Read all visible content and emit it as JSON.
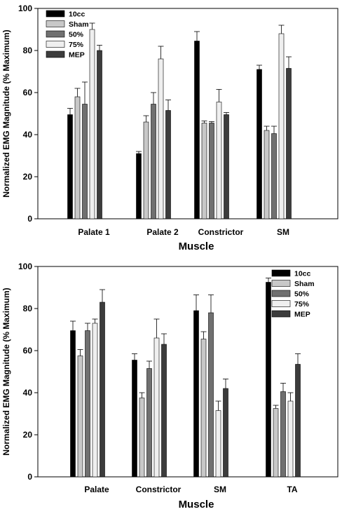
{
  "chart_data": [
    {
      "type": "bar",
      "ylabel": "Normalized EMG Magnitude (% Maximum)",
      "xlabel": "Muscle",
      "ylim": [
        0,
        100
      ],
      "yticks": [
        "0",
        "20",
        "40",
        "60",
        "80",
        "100"
      ],
      "categories": [
        "Palate 1",
        "Palate 2",
        "Constrictor",
        "SM"
      ],
      "legend_position": "top-left",
      "series": [
        {
          "name": "10cc",
          "color": "#000000",
          "values": [
            49.5,
            31,
            84.5,
            71
          ],
          "errors": [
            3,
            1,
            4.5,
            2
          ]
        },
        {
          "name": "Sham",
          "color": "#c8c8c8",
          "values": [
            58,
            46,
            45.5,
            42
          ],
          "errors": [
            4,
            3,
            1,
            2
          ]
        },
        {
          "name": "50%",
          "color": "#707070",
          "values": [
            54.5,
            54.5,
            45.5,
            40.5
          ],
          "errors": [
            10.5,
            5.5,
            0.7,
            3.5
          ]
        },
        {
          "name": "75%",
          "color": "#efefef",
          "values": [
            90,
            76,
            55.5,
            88
          ],
          "errors": [
            3,
            6,
            6,
            4
          ]
        },
        {
          "name": "MEP",
          "color": "#3c3c3c",
          "values": [
            80,
            51.5,
            49.5,
            71.5
          ],
          "errors": [
            2.5,
            5,
            1,
            5.5
          ]
        }
      ]
    },
    {
      "type": "bar",
      "ylabel": "Normalized EMG Magnitude (% Maximum)",
      "xlabel": "Muscle",
      "ylim": [
        0,
        100
      ],
      "yticks": [
        "0",
        "20",
        "40",
        "60",
        "80",
        "100"
      ],
      "categories": [
        "Palate",
        "Constrictor",
        "SM",
        "TA"
      ],
      "legend_position": "top-right",
      "series": [
        {
          "name": "10cc",
          "color": "#000000",
          "values": [
            69.5,
            55.5,
            79,
            92.5
          ],
          "errors": [
            4.5,
            3,
            7.5,
            2
          ]
        },
        {
          "name": "Sham",
          "color": "#c8c8c8",
          "values": [
            57.5,
            37.5,
            65.5,
            32.5
          ],
          "errors": [
            3,
            2.5,
            3.5,
            1.5
          ]
        },
        {
          "name": "50%",
          "color": "#707070",
          "values": [
            69.5,
            51.5,
            78,
            40.5
          ],
          "errors": [
            3.5,
            3.5,
            8.5,
            4
          ]
        },
        {
          "name": "75%",
          "color": "#efefef",
          "values": [
            73,
            66,
            31.5,
            36
          ],
          "errors": [
            2,
            9,
            4.5,
            4
          ]
        },
        {
          "name": "MEP",
          "color": "#3c3c3c",
          "values": [
            83,
            63,
            42,
            53.5
          ],
          "errors": [
            6,
            5,
            4.5,
            5
          ]
        }
      ]
    }
  ]
}
